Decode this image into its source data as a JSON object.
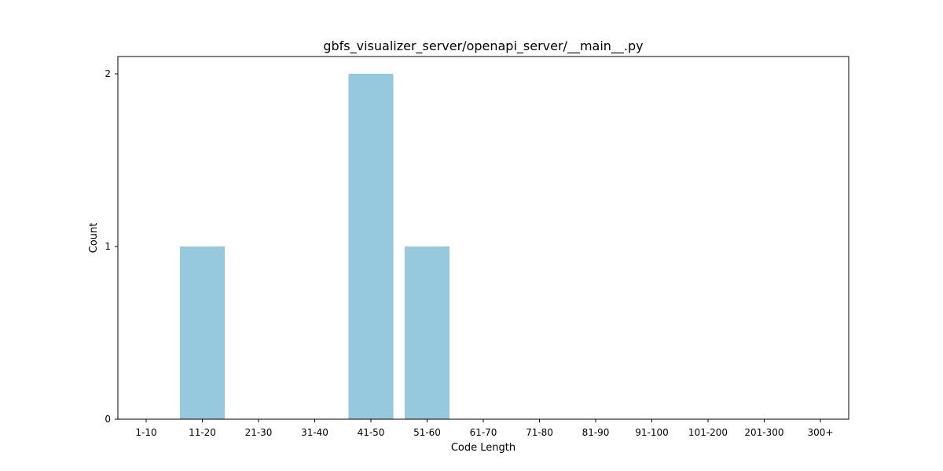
{
  "chart_data": {
    "type": "bar",
    "title": "gbfs_visualizer_server/openapi_server/__main__.py",
    "xlabel": "Code Length",
    "ylabel": "Count",
    "categories": [
      "1-10",
      "11-20",
      "21-30",
      "31-40",
      "41-50",
      "51-60",
      "61-70",
      "71-80",
      "81-90",
      "91-100",
      "101-200",
      "201-300",
      "300+"
    ],
    "values": [
      0,
      1,
      0,
      0,
      2,
      1,
      0,
      0,
      0,
      0,
      0,
      0,
      0
    ],
    "ylim": [
      0,
      2.1
    ],
    "yticks": [
      0,
      1,
      2
    ],
    "grid": false,
    "bar_color": "#96c9dd",
    "axis_color": "#000000"
  }
}
